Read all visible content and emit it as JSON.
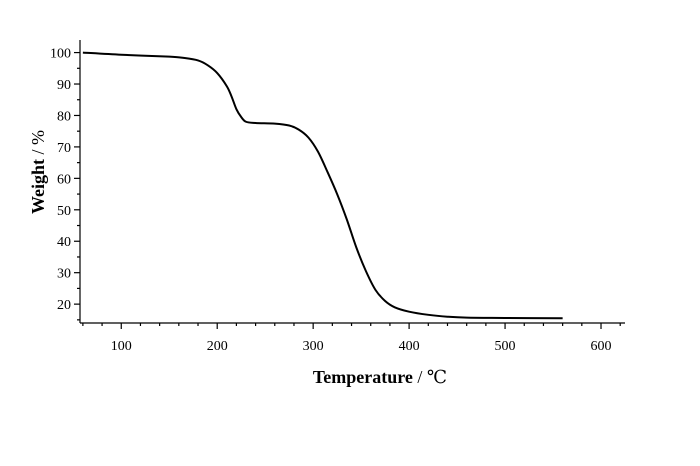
{
  "chart_data": {
    "type": "line",
    "xlabel": "Temperature",
    "xunit": "℃",
    "ylabel": "Weight",
    "yunit": "%",
    "xlim": [
      57,
      625
    ],
    "ylim": [
      14,
      104
    ],
    "xticks": [
      100,
      200,
      300,
      400,
      500,
      600
    ],
    "yticks": [
      20,
      30,
      40,
      50,
      60,
      70,
      80,
      90,
      100
    ],
    "grid": false,
    "series": [
      {
        "x": [
          60,
          100,
          150,
          165,
          180,
          190,
          200,
          210,
          215,
          220,
          225,
          230,
          240,
          260,
          275,
          285,
          295,
          305,
          315,
          325,
          335,
          345,
          355,
          365,
          375,
          385,
          400,
          420,
          440,
          460,
          500,
          560
        ],
        "y": [
          100,
          99.3,
          98.7,
          98.3,
          97.5,
          96,
          93.5,
          89.3,
          86,
          82,
          79.5,
          78,
          77.6,
          77.4,
          76.8,
          75.5,
          73,
          68.5,
          62,
          55,
          47,
          38,
          30.5,
          24.5,
          21,
          19,
          17.6,
          16.6,
          16.0,
          15.7,
          15.6,
          15.5
        ]
      }
    ]
  }
}
